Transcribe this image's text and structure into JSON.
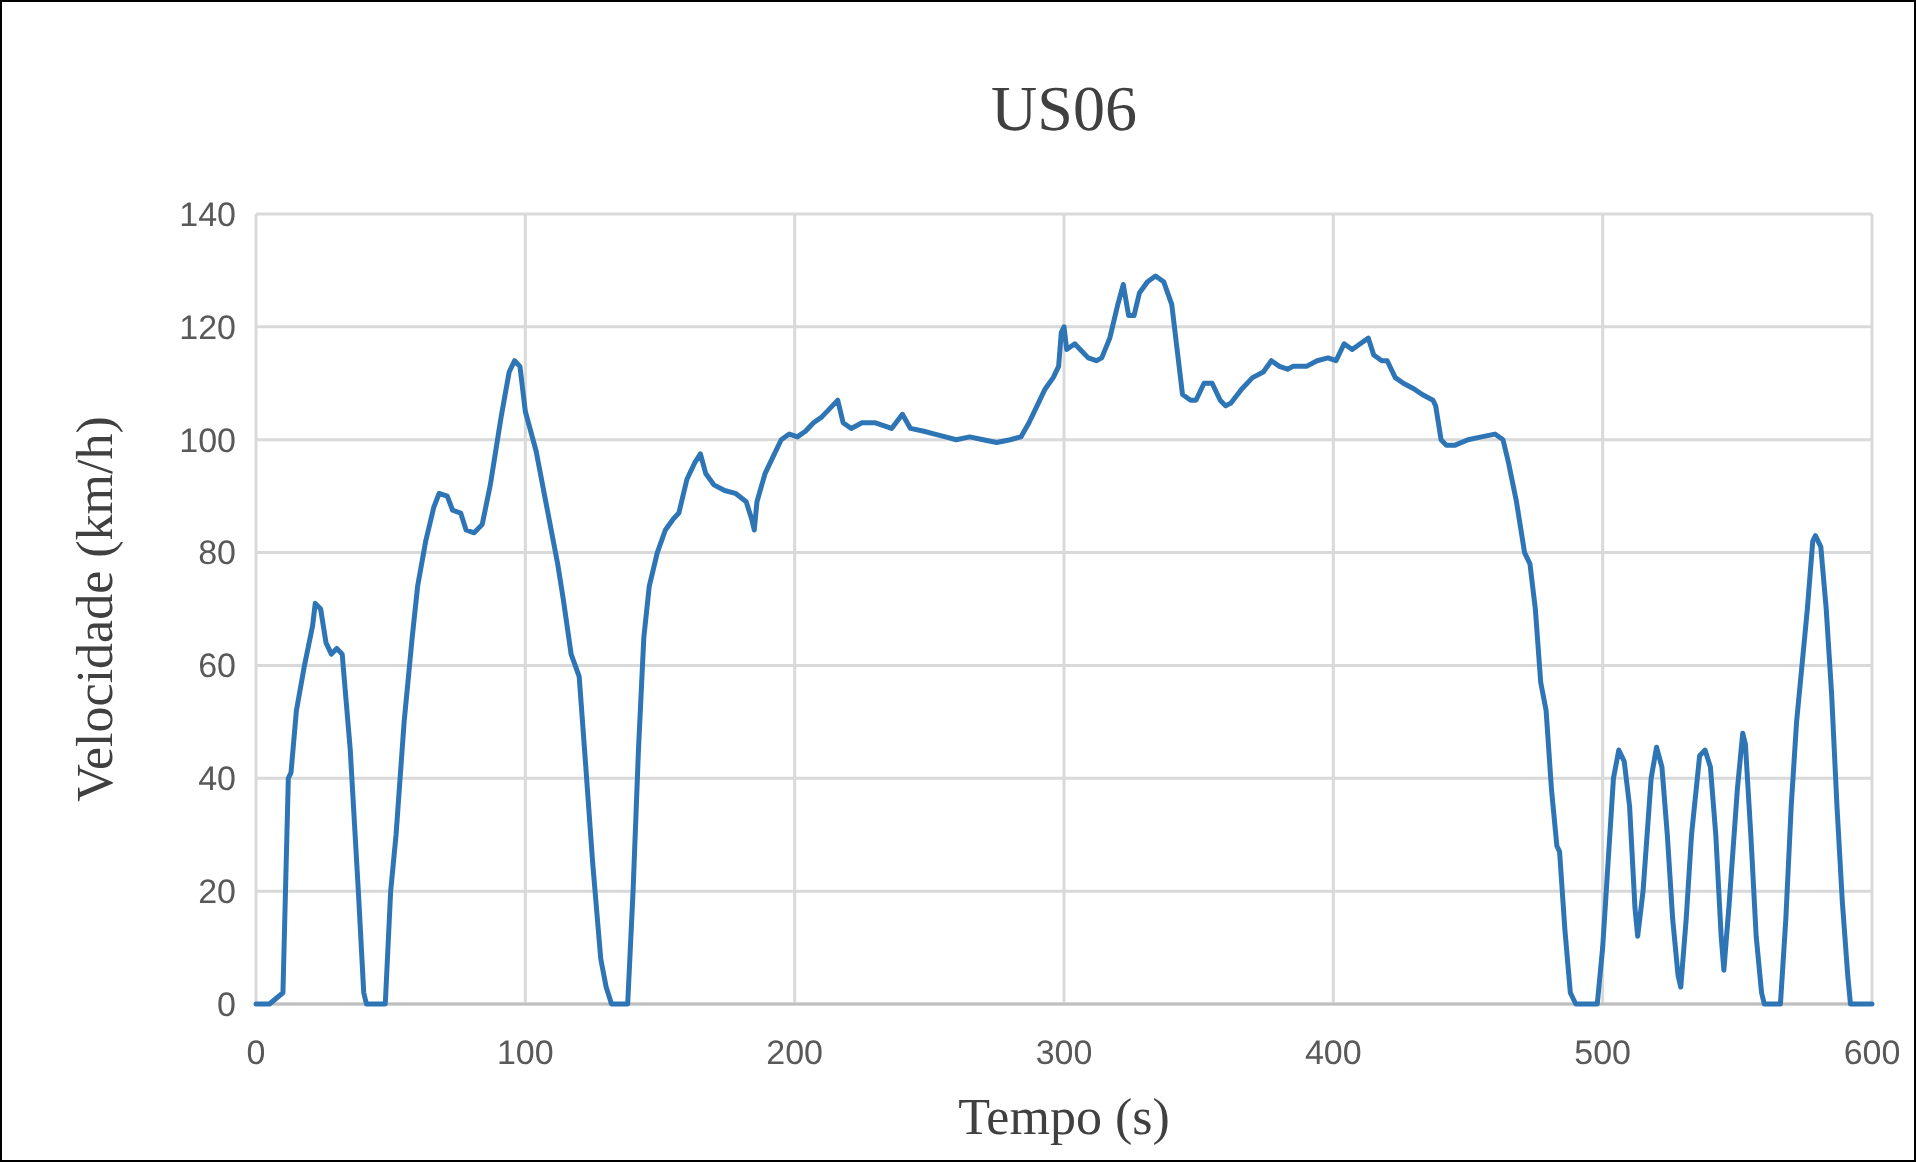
{
  "chart_data": {
    "type": "line",
    "title": "US06",
    "xlabel": "Tempo (s)",
    "ylabel": "Velocidade (km/h)",
    "xlim": [
      0,
      600
    ],
    "ylim": [
      0,
      140
    ],
    "xticks": [
      0,
      100,
      200,
      300,
      400,
      500,
      600
    ],
    "yticks": [
      0,
      20,
      40,
      60,
      80,
      100,
      120,
      140
    ],
    "grid": true,
    "marker": "none",
    "line_style": "solid",
    "series": [
      {
        "color": "#2e75b6",
        "x": [
          0,
          5,
          10,
          12,
          13,
          15,
          18,
          21,
          22,
          24,
          26,
          28,
          30,
          32,
          35,
          38,
          40,
          41,
          48,
          50,
          52,
          55,
          58,
          60,
          63,
          66,
          68,
          71,
          73,
          76,
          78,
          81,
          84,
          87,
          91,
          94,
          96,
          98,
          100,
          104,
          108,
          112,
          114,
          117,
          120,
          122,
          125,
          128,
          130,
          132,
          138,
          140,
          142,
          144,
          146,
          149,
          152,
          155,
          157,
          160,
          163,
          165,
          167,
          170,
          174,
          178,
          182,
          184,
          185,
          186,
          189,
          192,
          195,
          198,
          201,
          204,
          207,
          210,
          214,
          216,
          218,
          221,
          225,
          230,
          236,
          240,
          243,
          248,
          252,
          256,
          260,
          265,
          270,
          275,
          280,
          284,
          287,
          290,
          293,
          296,
          298,
          299,
          300,
          301,
          304,
          306,
          309,
          312,
          314,
          317,
          320,
          322,
          324,
          326,
          328,
          331,
          334,
          337,
          340,
          342,
          344,
          347,
          349,
          352,
          355,
          358,
          360,
          362,
          366,
          370,
          374,
          377,
          380,
          383,
          385,
          390,
          394,
          398,
          401,
          404,
          407,
          410,
          413,
          415,
          418,
          420,
          423,
          426,
          430,
          433,
          437,
          438,
          440,
          442,
          445,
          450,
          455,
          460,
          463,
          465,
          468,
          471,
          473,
          475,
          477,
          479,
          481,
          483,
          484,
          486,
          488,
          490,
          498,
          500,
          502,
          504,
          506,
          508,
          510,
          512,
          513,
          515,
          518,
          520,
          522,
          524,
          526,
          528,
          529,
          531,
          533,
          536,
          538,
          540,
          542,
          544,
          545,
          547,
          550,
          552,
          553,
          555,
          557,
          559,
          560,
          566,
          568,
          570,
          572,
          574,
          576,
          578,
          579,
          581,
          583,
          585,
          587,
          589,
          591,
          592,
          600
        ],
        "values": [
          0,
          0,
          2,
          40,
          41,
          52,
          60,
          67,
          71,
          70,
          64,
          62,
          63,
          62,
          45,
          20,
          2,
          0,
          0,
          20,
          30,
          50,
          65,
          74,
          82,
          88,
          90.5,
          90,
          87.5,
          87,
          84,
          83.5,
          85,
          92,
          104,
          112,
          114,
          113,
          105,
          98,
          88,
          78,
          72,
          62,
          58,
          45,
          25,
          8,
          3,
          0,
          0,
          20,
          45,
          65,
          74,
          80,
          84,
          86,
          87,
          93,
          96,
          97.5,
          94,
          92,
          91,
          90.5,
          89,
          86,
          84,
          89,
          94,
          97,
          100,
          101,
          100.5,
          101.5,
          103,
          104,
          106,
          107,
          103,
          102,
          103,
          103,
          102,
          104.5,
          102,
          101.5,
          101,
          100.5,
          100,
          100.5,
          100,
          99.5,
          100,
          100.5,
          103,
          106,
          109,
          111,
          113,
          119,
          120,
          116,
          117,
          116,
          114.5,
          114,
          114.5,
          118,
          124,
          127.5,
          122,
          122,
          126,
          128,
          129,
          128,
          124,
          116,
          108,
          107,
          107,
          110,
          110,
          107,
          106,
          106.5,
          109,
          111,
          112,
          114,
          113,
          112.5,
          113,
          113,
          114,
          114.5,
          114,
          117,
          116,
          117,
          118,
          115,
          114,
          114,
          111,
          110,
          109,
          108,
          107,
          106,
          100,
          99,
          99,
          100,
          100.5,
          101,
          100,
          96,
          89,
          80,
          78,
          70,
          57,
          52,
          38,
          28,
          27,
          13,
          2,
          0,
          0,
          10,
          25,
          40,
          45,
          43,
          35,
          17,
          12,
          20,
          40,
          45.5,
          42,
          30,
          15,
          5,
          3,
          15,
          30,
          44,
          45,
          42,
          30,
          12,
          6,
          18,
          38,
          48,
          46,
          30,
          12,
          2,
          0,
          0,
          15,
          35,
          50,
          60,
          70,
          82,
          83,
          81,
          70,
          55,
          35,
          18,
          5,
          0,
          0
        ]
      }
    ]
  }
}
